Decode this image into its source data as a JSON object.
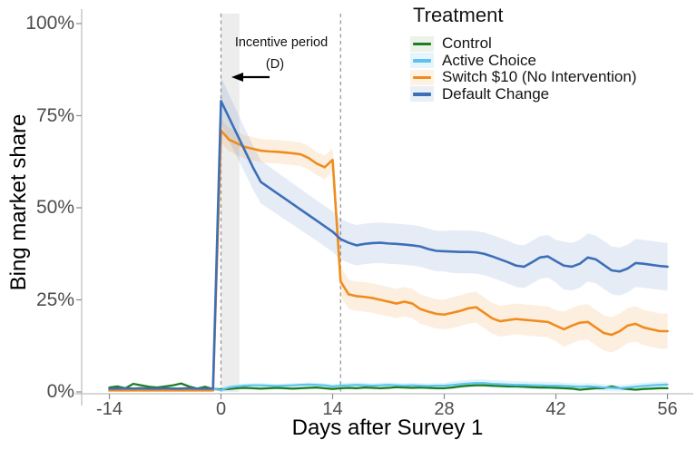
{
  "figure": {
    "y_axis": {
      "title": "Bing market share",
      "ticks": [
        "0%",
        "25%",
        "50%",
        "75%",
        "100%"
      ],
      "tick_values": [
        0,
        25,
        50,
        75,
        100
      ]
    },
    "x_axis": {
      "title": "Days after Survey 1",
      "ticks": [
        "-14",
        "0",
        "14",
        "28",
        "42",
        "56"
      ],
      "tick_values": [
        -14,
        0,
        14,
        28,
        42,
        56
      ]
    },
    "legend": {
      "title": "Treatment",
      "items": [
        {
          "label": "Control",
          "color": "#1b7d1b",
          "tint": "#eaf2ea"
        },
        {
          "label": "Active Choice",
          "color": "#5bc3ee",
          "tint": "#e7f4fc"
        },
        {
          "label": "Switch $10 (No Intervention)",
          "color": "#f08c1e",
          "tint": "#fdf2e3"
        },
        {
          "label": "Default Change",
          "color": "#3d6fb8",
          "tint": "#e9eff7"
        }
      ]
    },
    "annotation": {
      "line1": "Incentive period",
      "line2": "(D)"
    }
  },
  "chart_data": {
    "type": "line",
    "title": "",
    "xlabel": "Days after Survey 1",
    "ylabel": "Bing market share",
    "xlim": [
      -14,
      56
    ],
    "ylim": [
      0,
      100
    ],
    "grid": false,
    "legend_position": "top-right",
    "vlines": [
      0,
      15
    ],
    "shaded_band_x": [
      0,
      2.3
    ],
    "x": [
      -14,
      -13,
      -12,
      -11,
      -10,
      -9,
      -8,
      -7,
      -6,
      -5,
      -4,
      -3,
      -2,
      -1,
      0,
      1,
      2,
      3,
      4,
      5,
      6,
      7,
      8,
      9,
      10,
      11,
      12,
      13,
      14,
      15,
      16,
      17,
      18,
      19,
      20,
      21,
      22,
      23,
      24,
      25,
      26,
      27,
      28,
      29,
      30,
      31,
      32,
      33,
      34,
      35,
      36,
      37,
      38,
      39,
      40,
      41,
      42,
      43,
      44,
      45,
      46,
      47,
      48,
      49,
      50,
      51,
      52,
      53,
      54,
      55,
      56
    ],
    "series": [
      {
        "name": "Control",
        "color": "#1b7d1b",
        "ribbon": "rgba(27,125,27,0.10)",
        "width": 2.2,
        "band": 0.4,
        "values": [
          1.2,
          1.5,
          1.0,
          2.2,
          1.8,
          1.4,
          1.2,
          1.5,
          1.8,
          2.3,
          1.5,
          0.9,
          1.4,
          0.8,
          0.7,
          0.8,
          1.0,
          1.1,
          1.0,
          0.9,
          1.0,
          1.1,
          1.0,
          0.9,
          1.0,
          1.1,
          1.2,
          1.0,
          0.8,
          1.0,
          1.1,
          1.0,
          1.2,
          1.1,
          1.0,
          1.1,
          1.3,
          1.2,
          1.1,
          1.2,
          1.1,
          1.0,
          1.0,
          1.2,
          1.5,
          1.7,
          1.8,
          1.8,
          1.7,
          1.6,
          1.5,
          1.5,
          1.4,
          1.3,
          1.2,
          1.2,
          1.1,
          1.0,
          0.9,
          0.6,
          0.8,
          1.0,
          1.0,
          1.5,
          1.0,
          0.8,
          0.6,
          0.8,
          0.9,
          1.0,
          1.0
        ]
      },
      {
        "name": "Active Choice",
        "color": "#5bc3ee",
        "ribbon": "rgba(91,195,238,0.18)",
        "width": 2.2,
        "band": [
          0.3,
          0.3,
          0.3,
          0.3,
          0.3,
          0.3,
          0.3,
          0.3,
          0.3,
          0.3,
          0.3,
          0.3,
          0.3,
          0.3,
          0.6,
          0.6,
          0.6,
          0.6,
          0.6,
          0.6,
          0.6,
          0.6,
          0.6,
          0.6,
          0.6,
          0.6,
          0.6,
          0.6,
          0.6,
          0.7,
          0.7,
          0.7,
          0.7,
          0.7,
          0.7,
          0.7,
          0.7,
          0.7,
          0.7,
          0.7,
          0.7,
          0.7,
          0.7,
          1.0,
          1.0,
          1.0,
          1.0,
          1.0,
          1.0,
          1.0,
          1.0,
          1.0,
          1.0,
          1.0,
          1.0,
          1.0,
          1.0,
          0.9,
          0.9,
          0.9,
          0.9,
          0.9,
          0.9,
          0.9,
          0.9,
          0.9,
          0.9,
          0.9,
          0.9,
          0.9,
          0.9
        ],
        "values": [
          0.9,
          0.8,
          0.9,
          0.8,
          0.9,
          0.9,
          0.8,
          0.9,
          0.9,
          0.8,
          0.9,
          0.8,
          0.9,
          0.8,
          0.5,
          1.2,
          1.5,
          1.7,
          1.8,
          1.8,
          1.7,
          1.6,
          1.7,
          1.8,
          1.9,
          2.0,
          1.9,
          1.8,
          1.5,
          1.7,
          1.8,
          1.9,
          1.8,
          1.7,
          1.8,
          1.9,
          1.8,
          1.7,
          1.8,
          1.7,
          1.6,
          1.7,
          1.7,
          1.9,
          2.1,
          2.3,
          2.4,
          2.4,
          2.2,
          2.1,
          2.0,
          1.9,
          1.9,
          1.8,
          1.8,
          1.7,
          1.7,
          1.6,
          1.5,
          1.4,
          1.5,
          1.4,
          1.2,
          1.1,
          1.0,
          1.2,
          1.4,
          1.6,
          1.8,
          1.9,
          2.0
        ]
      },
      {
        "name": "Switch $10 (No Intervention)",
        "color": "#f08c1e",
        "ribbon": "rgba(240,140,30,0.14)",
        "width": 2.6,
        "band": [
          0.2,
          0.2,
          0.2,
          0.2,
          0.2,
          0.2,
          0.2,
          0.2,
          0.2,
          0.2,
          0.2,
          0.2,
          0.2,
          0.2,
          3.2,
          3.2,
          3.2,
          3.2,
          3.2,
          3.2,
          3.2,
          3.2,
          3.2,
          3.2,
          3.2,
          3.2,
          3.2,
          3.2,
          3.2,
          4.0,
          4.0,
          4.0,
          4.0,
          4.0,
          4.0,
          4.0,
          4.0,
          4.0,
          4.0,
          4.0,
          4.0,
          4.0,
          4.0,
          4.2,
          4.2,
          4.2,
          4.2,
          4.2,
          4.2,
          4.2,
          4.2,
          4.2,
          4.2,
          4.2,
          4.2,
          4.2,
          4.2,
          4.8,
          4.8,
          4.8,
          4.8,
          4.8,
          4.8,
          4.8,
          4.8,
          4.8,
          4.8,
          4.8,
          4.8,
          4.8,
          4.8
        ],
        "values": [
          0.4,
          0.4,
          0.4,
          0.4,
          0.4,
          0.4,
          0.4,
          0.4,
          0.4,
          0.4,
          0.4,
          0.4,
          0.4,
          0.4,
          71,
          68.5,
          67.5,
          66.5,
          66,
          65.5,
          65.3,
          65.2,
          65,
          64.8,
          64.5,
          63.5,
          62,
          61,
          63,
          30,
          26.5,
          26,
          25.8,
          25.5,
          25,
          24.5,
          24,
          24.5,
          24,
          22.5,
          21.8,
          21.2,
          21,
          21.5,
          22,
          22.7,
          23,
          21.5,
          20,
          19.2,
          19.5,
          19.8,
          19.6,
          19.4,
          19.2,
          19,
          18,
          17,
          18,
          18.8,
          19,
          17.5,
          16,
          15.5,
          16.5,
          18,
          18.5,
          17.5,
          17,
          16.5,
          16.5
        ]
      },
      {
        "name": "Default Change",
        "color": "#3d6fb8",
        "ribbon": "rgba(61,111,184,0.13)",
        "width": 2.6,
        "band": [
          0.2,
          0.2,
          0.2,
          0.2,
          0.2,
          0.2,
          0.2,
          0.2,
          0.2,
          0.2,
          0.2,
          0.2,
          0.2,
          0.2,
          6.5,
          6.3,
          6.2,
          6.0,
          6.0,
          5.8,
          5.8,
          5.7,
          5.7,
          5.6,
          5.6,
          5.5,
          5.5,
          5.5,
          5.5,
          5.5,
          5.5,
          5.5,
          5.5,
          5.5,
          5.5,
          5.5,
          5.5,
          5.5,
          5.5,
          5.5,
          5.5,
          5.5,
          5.5,
          5.8,
          5.8,
          5.8,
          5.8,
          5.8,
          5.8,
          5.8,
          5.8,
          5.8,
          5.8,
          5.8,
          5.8,
          5.8,
          5.8,
          6.5,
          6.5,
          6.5,
          6.5,
          6.5,
          6.5,
          6.5,
          6.5,
          6.5,
          6.5,
          6.5,
          6.5,
          6.5,
          6.5
        ],
        "values": [
          0.9,
          0.9,
          1.0,
          0.9,
          1.0,
          0.9,
          0.9,
          1.0,
          0.9,
          0.9,
          1.0,
          0.9,
          0.9,
          0.9,
          79,
          74.5,
          70,
          65.5,
          61,
          57,
          55.5,
          54,
          52.5,
          51,
          49.5,
          48,
          46.5,
          45,
          43.5,
          41.5,
          40.5,
          39.8,
          40.2,
          40.4,
          40.5,
          40.3,
          40.2,
          40,
          39.8,
          39.5,
          38.8,
          38.3,
          38.2,
          38.1,
          38,
          38,
          37.9,
          37.5,
          36.8,
          36,
          35.2,
          34.3,
          34,
          35.2,
          36.5,
          36.8,
          35.5,
          34.3,
          34,
          34.8,
          36.5,
          36,
          34.5,
          33,
          32.7,
          33.5,
          35,
          34.8,
          34.5,
          34.2,
          34
        ]
      }
    ],
    "colors": {
      "dashed_line": "#999999",
      "axis_line": "#bfbfbf",
      "tick_text": "#4d4d4d",
      "incentive_band": "rgba(0,0,0,0.07)"
    }
  }
}
